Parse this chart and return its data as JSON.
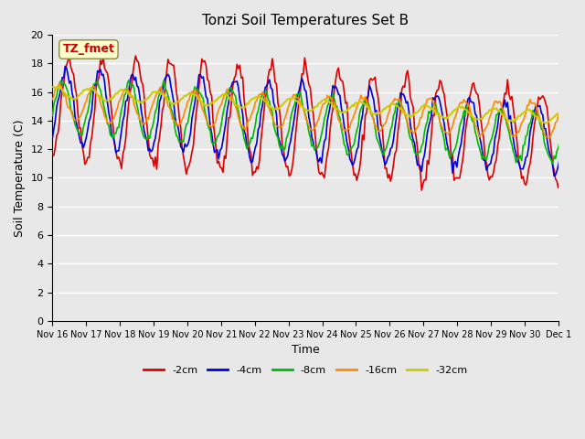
{
  "title": "Tonzi Soil Temperatures Set B",
  "xlabel": "Time",
  "ylabel": "Soil Temperature (C)",
  "ylim": [
    0,
    20
  ],
  "yticks": [
    0,
    2,
    4,
    6,
    8,
    10,
    12,
    14,
    16,
    18,
    20
  ],
  "x_labels": [
    "Nov 16",
    "Nov 17",
    "Nov 18",
    "Nov 19",
    "Nov 20",
    "Nov 21",
    "Nov 22",
    "Nov 23",
    "Nov 24",
    "Nov 25",
    "Nov 26",
    "Nov 27",
    "Nov 28",
    "Nov 29",
    "Nov 30",
    "Dec 1"
  ],
  "annotation_text": "TZ_fmet",
  "annotation_color": "#cc0000",
  "annotation_bg": "#ffffcc",
  "bg_color": "#e8e8e8",
  "plot_bg": "#e8e8e8",
  "grid_color": "#ffffff",
  "colors": {
    "-2cm": "#dd0000",
    "-4cm": "#0000dd",
    "-8cm": "#00bb00",
    "-16cm": "#ff8800",
    "-32cm": "#cccc00"
  },
  "legend_labels": [
    "-2cm",
    "-4cm",
    "-8cm",
    "-16cm",
    "-32cm"
  ]
}
